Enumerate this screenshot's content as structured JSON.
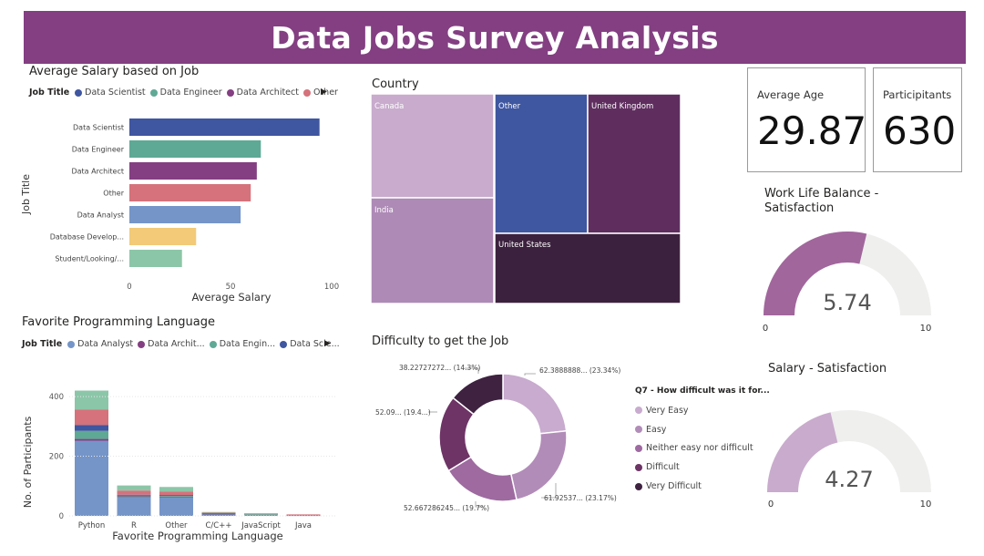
{
  "dashboard": {
    "title": "Data Jobs Survey Analysis"
  },
  "salary_chart": {
    "title": "Average Salary based on Job",
    "legend_title": "Job Title",
    "legend": [
      {
        "label": "Data Scientist",
        "color": "#3f56a0"
      },
      {
        "label": "Data Engineer",
        "color": "#5ea995"
      },
      {
        "label": "Data Architect",
        "color": "#843f82"
      },
      {
        "label": "Other",
        "color": "#d5727b"
      }
    ],
    "ylabel": "Job Title",
    "xlabel": "Average Salary"
  },
  "lang_chart": {
    "title": "Favorite Programming Language",
    "legend_title": "Job Title",
    "legend": [
      {
        "label": "Data Analyst",
        "color": "#7595c8"
      },
      {
        "label": "Data Archit...",
        "color": "#843f82"
      },
      {
        "label": "Data Engin...",
        "color": "#5ea995"
      },
      {
        "label": "Data Scie...",
        "color": "#3f56a0"
      }
    ],
    "ylabel": "No. of Participants",
    "xlabel": "Favorite Programming Language"
  },
  "country_chart": {
    "title": "Country"
  },
  "difficulty_chart": {
    "title": "Difficulty to get the Job",
    "legend_title": "Q7 - How difficult was it for...",
    "legend": [
      {
        "label": "Very Easy",
        "color": "#c8abce"
      },
      {
        "label": "Easy",
        "color": "#b28cb8"
      },
      {
        "label": "Neither easy nor difficult",
        "color": "#9e6aa0"
      },
      {
        "label": "Difficult",
        "color": "#6e3466"
      },
      {
        "label": "Very Difficult",
        "color": "#3e2240"
      }
    ],
    "slice_labels": [
      "62.3888888... (23.34%)",
      "61.92537... (23.17%)",
      "52.667286245... (19.7%)",
      "52.09... (19.4...)",
      "38.22727272... (14.3%)"
    ]
  },
  "cards": {
    "avg_age": {
      "label": "Average Age",
      "value": "29.87"
    },
    "participants": {
      "label": "Participants",
      "value": "630",
      "display_label": "Participitants"
    }
  },
  "gauges": {
    "work_life": {
      "title_line1": "Work Life Balance -",
      "title_line2": "Satisfaction",
      "value": 5.74,
      "value_text": "5.74",
      "min": "0",
      "max": "10",
      "fill": "#a1669c"
    },
    "salary": {
      "title": "Salary - Satisfaction",
      "value": 4.27,
      "value_text": "4.27",
      "min": "0",
      "max": "10",
      "fill": "#c9abcd"
    }
  },
  "chart_data": [
    {
      "type": "bar",
      "orientation": "horizontal",
      "title": "Average Salary based on Job",
      "categories": [
        "Data Scientist",
        "Data Engineer",
        "Data Architect",
        "Other",
        "Data Analyst",
        "Database Develop...",
        "Student/Looking/..."
      ],
      "values": [
        94,
        65,
        63,
        60,
        55,
        33,
        26
      ],
      "colors": [
        "#3f56a0",
        "#5ea995",
        "#843f82",
        "#d5727b",
        "#7595c8",
        "#f2ca78",
        "#8cc6a8"
      ],
      "xlabel": "Average Salary",
      "ylabel": "Job Title",
      "xlim": [
        0,
        100
      ],
      "xticks": [
        "0",
        "50",
        "100"
      ]
    },
    {
      "type": "bar",
      "stacked": true,
      "title": "Favorite Programming Language",
      "categories": [
        "Python",
        "R",
        "Other",
        "C/C++",
        "JavaScript",
        "Java"
      ],
      "series": [
        {
          "name": "Data Analyst",
          "color": "#7595c8",
          "values": [
            252,
            63,
            62,
            6,
            4,
            2
          ]
        },
        {
          "name": "Data Archit...",
          "color": "#843f82",
          "values": [
            6,
            3,
            3,
            1,
            0,
            0
          ]
        },
        {
          "name": "Data Engin...",
          "color": "#5ea995",
          "values": [
            27,
            2,
            2,
            1,
            2,
            1
          ]
        },
        {
          "name": "Data Scie...",
          "color": "#3f56a0",
          "values": [
            20,
            3,
            3,
            1,
            0,
            0
          ]
        },
        {
          "name": "Other",
          "color": "#d5727b",
          "values": [
            52,
            14,
            12,
            2,
            2,
            2
          ]
        },
        {
          "color": "#8cc6a8",
          "values": [
            63,
            17,
            15,
            2,
            1,
            0
          ]
        }
      ],
      "ylim": [
        0,
        440
      ],
      "yticks": [
        "0",
        "200",
        "400"
      ],
      "xlabel": "Favorite Programming Language",
      "ylabel": "No. of Participants"
    },
    {
      "type": "treemap",
      "title": "Country",
      "labels": [
        "Canada",
        "India",
        "Other",
        "United Kingdom",
        "United States"
      ],
      "colors": [
        "#c8abcd",
        "#ae8ab6",
        "#3f56a0",
        "#5f2e5f",
        "#3c213e"
      ]
    },
    {
      "type": "pie",
      "donut": true,
      "title": "Difficulty to get the Job",
      "labels": [
        "Very Easy",
        "Easy",
        "Neither easy nor difficult",
        "Difficult",
        "Very Difficult"
      ],
      "values": [
        23.34,
        23.17,
        19.7,
        19.4,
        14.3
      ],
      "colors": [
        "#c8abce",
        "#b28cb8",
        "#9e6aa0",
        "#6e3466",
        "#3e2240"
      ]
    }
  ]
}
